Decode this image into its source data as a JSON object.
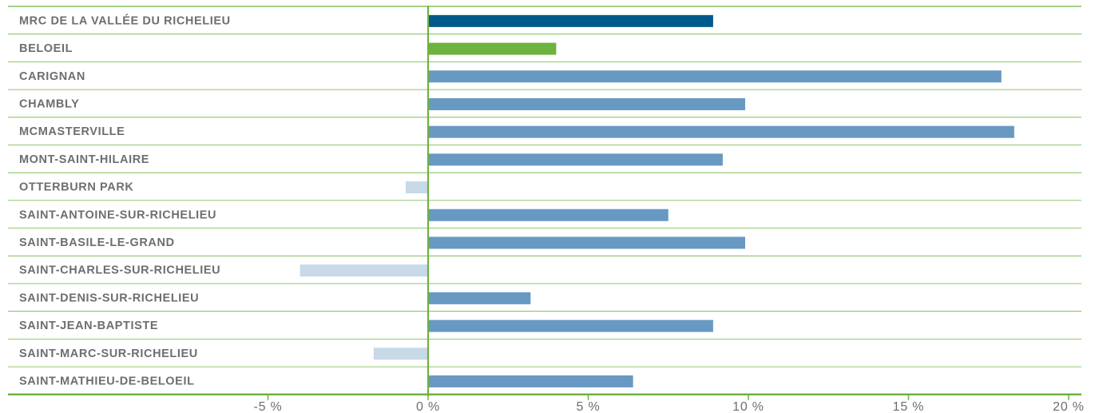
{
  "chart_data": {
    "type": "bar",
    "orientation": "horizontal",
    "title": "",
    "xlabel": "",
    "ylabel": "",
    "xlim": [
      -5.5,
      20
    ],
    "grid": true,
    "categories": [
      "MRC DE LA VALLÉE DU RICHELIEU",
      "BELOEIL",
      "CARIGNAN",
      "CHAMBLY",
      "MCMASTERVILLE",
      "MONT-SAINT-HILAIRE",
      "OTTERBURN PARK",
      "SAINT-ANTOINE-SUR-RICHELIEU",
      "SAINT-BASILE-LE-GRAND",
      "SAINT-CHARLES-SUR-RICHELIEU",
      "SAINT-DENIS-SUR-RICHELIEU",
      "SAINT-JEAN-BAPTISTE",
      "SAINT-MARC-SUR-RICHELIEU",
      "SAINT-MATHIEU-DE-BELOEIL"
    ],
    "values": [
      8.9,
      4.0,
      17.9,
      9.9,
      18.3,
      9.2,
      -0.7,
      7.5,
      9.9,
      -4.0,
      3.2,
      8.9,
      -1.7,
      6.4
    ],
    "ticks": [
      -5,
      0,
      5,
      10,
      15,
      20
    ],
    "tick_labels": [
      "-5 %",
      "0 %",
      "5 %",
      "10 %",
      "15 %",
      "20 %"
    ],
    "colors": {
      "mrc": "#005a8c",
      "beloeil": "#6db33f",
      "positive": "#6799c2",
      "negative": "#c8d9e8",
      "grid": "#6db33f",
      "text": "#6d6e71"
    }
  }
}
